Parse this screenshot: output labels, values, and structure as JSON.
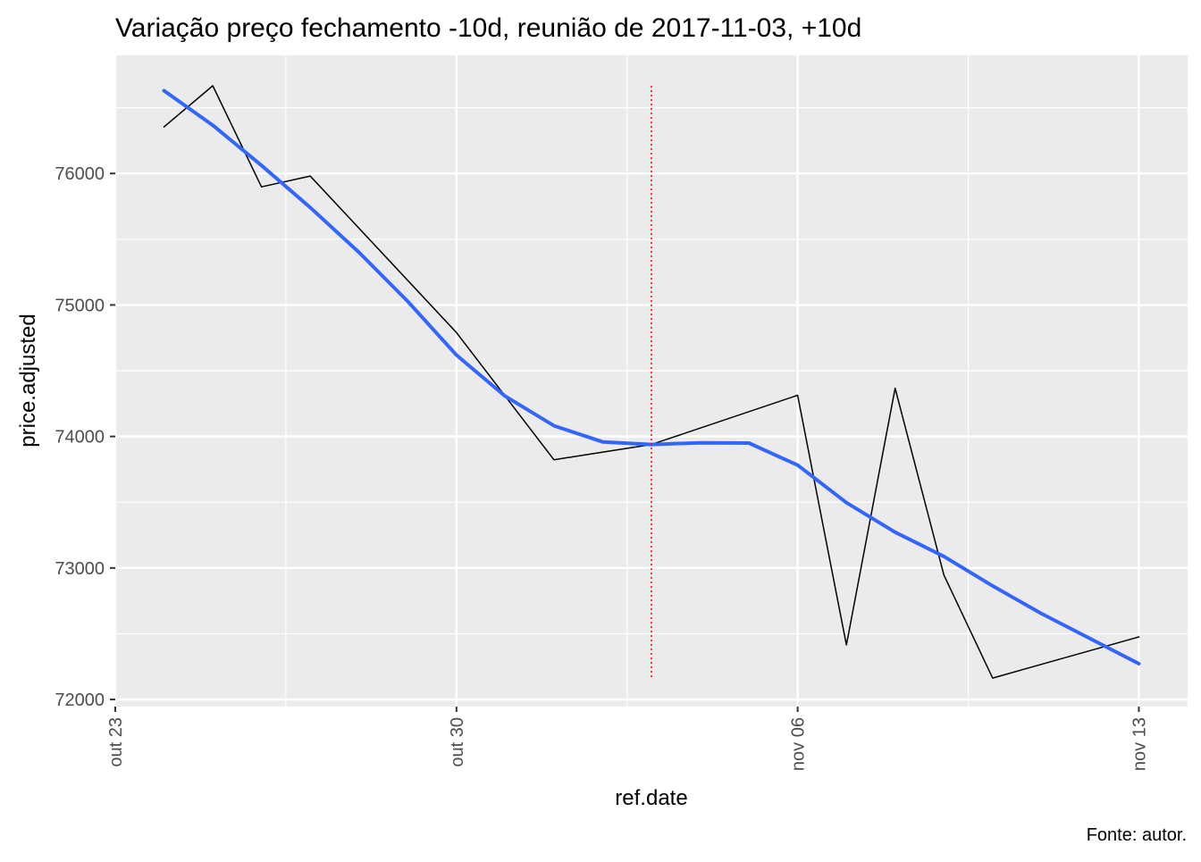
{
  "chart_data": {
    "type": "line",
    "title": "Variação preço fechamento -10d, reunião de 2017-11-03, +10d",
    "xlabel": "ref.date",
    "ylabel": "price.adjusted",
    "caption": "Fonte: autor.",
    "xlim": [
      "2017-10-23",
      "2017-11-14"
    ],
    "ylim": [
      71946,
      76898
    ],
    "x_ticks": [
      {
        "date": "2017-10-23",
        "label": "out 23"
      },
      {
        "date": "2017-10-30",
        "label": "out 30"
      },
      {
        "date": "2017-11-06",
        "label": "nov 06"
      },
      {
        "date": "2017-11-13",
        "label": "nov 13"
      }
    ],
    "y_ticks": [
      72000,
      73000,
      74000,
      75000,
      76000
    ],
    "grid": true,
    "background": "#EBEBEB",
    "series": [
      {
        "kind": "line",
        "color": "#000000",
        "x": [
          "2017-10-24",
          "2017-10-25",
          "2017-10-26",
          "2017-10-27",
          "2017-10-30",
          "2017-11-01",
          "2017-11-03",
          "2017-11-06",
          "2017-11-07",
          "2017-11-08",
          "2017-11-09",
          "2017-11-10",
          "2017-11-13"
        ],
        "y": [
          76354,
          76667,
          75898,
          75980,
          74790,
          73823,
          73939,
          74313,
          72415,
          74367,
          72946,
          72163,
          72476
        ]
      },
      {
        "kind": "smooth",
        "color": "#3366FF",
        "x": [
          "2017-10-24",
          "2017-10-25",
          "2017-10-26",
          "2017-10-27",
          "2017-10-28",
          "2017-10-29",
          "2017-10-30",
          "2017-10-31",
          "2017-11-01",
          "2017-11-02",
          "2017-11-03",
          "2017-11-04",
          "2017-11-05",
          "2017-11-06",
          "2017-11-07",
          "2017-11-08",
          "2017-11-09",
          "2017-11-10",
          "2017-11-11",
          "2017-11-12",
          "2017-11-13"
        ],
        "y": [
          76630,
          76367,
          76061,
          75741,
          75400,
          75027,
          74619,
          74306,
          74082,
          73959,
          73939,
          73952,
          73950,
          73782,
          73497,
          73272,
          73088,
          72864,
          72653,
          72463,
          72272
        ]
      }
    ],
    "vline": {
      "date": "2017-11-03",
      "color": "#FF0000",
      "style": "dotted",
      "from": 72163,
      "to": 76667
    }
  }
}
